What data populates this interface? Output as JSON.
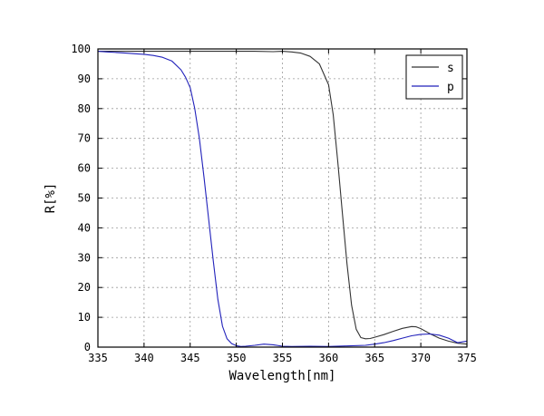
{
  "chart_data": {
    "type": "line",
    "title": "",
    "xlabel": "Wavelength[nm]",
    "ylabel": "R[%]",
    "xlim": [
      335,
      375
    ],
    "ylim": [
      0,
      100
    ],
    "x_ticks": [
      335,
      340,
      345,
      350,
      355,
      360,
      365,
      370,
      375
    ],
    "y_ticks": [
      0,
      10,
      20,
      30,
      40,
      50,
      60,
      70,
      80,
      90,
      100
    ],
    "grid": true,
    "legend_position": "top-right",
    "series": [
      {
        "name": "s",
        "color": "#333333",
        "x": [
          335,
          340,
          345,
          350,
          352,
          354,
          355,
          356,
          357,
          358,
          359,
          360,
          360.5,
          361,
          361.5,
          362,
          362.5,
          363,
          363.5,
          364,
          364.5,
          365,
          366,
          367,
          368,
          369,
          369.5,
          370,
          371,
          372,
          373,
          374,
          375
        ],
        "y": [
          99.2,
          99.2,
          99.2,
          99.2,
          99.2,
          99.1,
          99.2,
          99.0,
          98.6,
          97.5,
          95.0,
          88.0,
          78.0,
          62.0,
          45.0,
          28.0,
          14.0,
          6.0,
          3.2,
          2.8,
          2.9,
          3.3,
          4.2,
          5.3,
          6.3,
          6.9,
          6.8,
          6.2,
          4.5,
          3.0,
          2.0,
          1.3,
          1.0
        ]
      },
      {
        "name": "p",
        "color": "#2222bb",
        "x": [
          335,
          336,
          337,
          338,
          339,
          340,
          341,
          342,
          343,
          344,
          344.5,
          345,
          345.5,
          346,
          346.5,
          347,
          347.5,
          348,
          348.5,
          349,
          349.5,
          350,
          350.5,
          351,
          352,
          353,
          354,
          355,
          356,
          358,
          360,
          362,
          364,
          365,
          366,
          367,
          368,
          369,
          370,
          371,
          372,
          373,
          374,
          375
        ],
        "y": [
          99.2,
          99.0,
          98.8,
          98.6,
          98.4,
          98.2,
          97.8,
          97.2,
          96.0,
          93.0,
          90.5,
          87.0,
          80.0,
          70.0,
          57.0,
          43.0,
          29.0,
          16.0,
          7.0,
          2.8,
          1.2,
          0.5,
          0.2,
          0.3,
          0.6,
          1.0,
          0.8,
          0.3,
          0.2,
          0.3,
          0.2,
          0.4,
          0.6,
          1.0,
          1.5,
          2.2,
          3.0,
          3.8,
          4.3,
          4.4,
          4.0,
          3.0,
          1.5,
          2.0
        ]
      }
    ]
  }
}
